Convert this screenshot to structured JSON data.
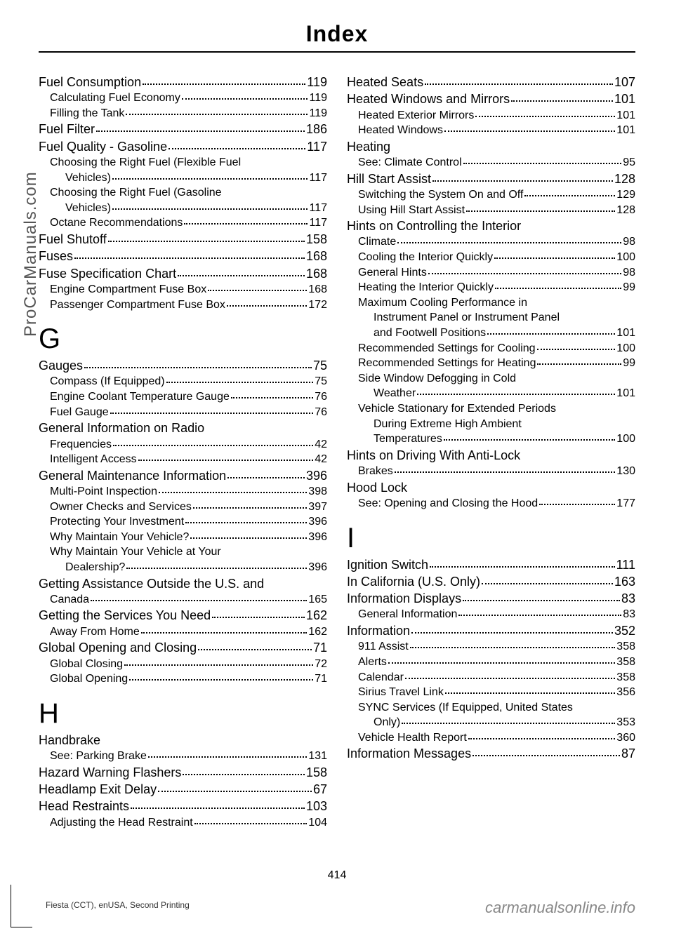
{
  "title": "Index",
  "page_number": "414",
  "footer_left": "Fiesta (CCT), enUSA, Second Printing",
  "footer_right": "carmanualsonline.info",
  "watermark": "ProCarManuals.com",
  "left_column": [
    {
      "label": "Fuel Consumption",
      "page": "119",
      "level": 0
    },
    {
      "label": "Calculating Fuel Economy",
      "page": "119",
      "level": 1
    },
    {
      "label": "Filling the Tank",
      "page": "119",
      "level": 1
    },
    {
      "label": "Fuel Filter",
      "page": "186",
      "level": 0
    },
    {
      "label": "Fuel Quality - Gasoline",
      "page": "117",
      "level": 0
    },
    {
      "label": "Choosing the Right Fuel (Flexible Fuel",
      "level": 1
    },
    {
      "label": "Vehicles)",
      "page": "117",
      "level": 2
    },
    {
      "label": "Choosing the Right Fuel (Gasoline",
      "level": 1
    },
    {
      "label": "Vehicles)",
      "page": "117",
      "level": 2
    },
    {
      "label": "Octane Recommendations",
      "page": "117",
      "level": 1
    },
    {
      "label": "Fuel Shutoff",
      "page": "158",
      "level": 0
    },
    {
      "label": "Fuses",
      "page": "168",
      "level": 0
    },
    {
      "label": "Fuse Specification Chart",
      "page": "168",
      "level": 0
    },
    {
      "label": "Engine Compartment Fuse Box",
      "page": "168",
      "level": 1
    },
    {
      "label": "Passenger Compartment Fuse Box",
      "page": "172",
      "level": 1
    },
    {
      "letter": "G"
    },
    {
      "label": "Gauges",
      "page": "75",
      "level": 0
    },
    {
      "label": "Compass (If Equipped)",
      "page": "75",
      "level": 1
    },
    {
      "label": "Engine Coolant Temperature Gauge",
      "page": "76",
      "level": 1
    },
    {
      "label": "Fuel Gauge",
      "page": "76",
      "level": 1
    },
    {
      "label": "General Information on Radio",
      "level": 0
    },
    {
      "label": "Frequencies",
      "page": "42",
      "level": 1
    },
    {
      "label": "Intelligent Access",
      "page": "42",
      "level": 1
    },
    {
      "label": "General Maintenance Information",
      "page": "396",
      "level": 0
    },
    {
      "label": "Multi-Point Inspection",
      "page": "398",
      "level": 1
    },
    {
      "label": "Owner Checks and Services",
      "page": "397",
      "level": 1
    },
    {
      "label": "Protecting Your Investment",
      "page": "396",
      "level": 1
    },
    {
      "label": "Why Maintain Your Vehicle?",
      "page": "396",
      "level": 1
    },
    {
      "label": "Why Maintain Your Vehicle at Your",
      "level": 1
    },
    {
      "label": "Dealership?",
      "page": "396",
      "level": 2
    },
    {
      "label": "Getting Assistance Outside the U.S. and",
      "level": 0
    },
    {
      "label": "Canada",
      "page": "165",
      "level": 1
    },
    {
      "label": "Getting the Services You Need",
      "page": "162",
      "level": 0
    },
    {
      "label": "Away From Home",
      "page": "162",
      "level": 1
    },
    {
      "label": "Global Opening and Closing",
      "page": "71",
      "level": 0
    },
    {
      "label": "Global Closing",
      "page": "72",
      "level": 1
    },
    {
      "label": "Global Opening",
      "page": "71",
      "level": 1
    },
    {
      "letter": "H"
    },
    {
      "label": "Handbrake",
      "level": 0
    },
    {
      "label": "See: Parking Brake",
      "page": "131",
      "level": 1
    },
    {
      "label": "Hazard Warning Flashers",
      "page": "158",
      "level": 0
    },
    {
      "label": "Headlamp Exit Delay",
      "page": "67",
      "level": 0
    },
    {
      "label": "Head Restraints",
      "page": "103",
      "level": 0
    },
    {
      "label": "Adjusting the Head Restraint",
      "page": "104",
      "level": 1
    }
  ],
  "right_column": [
    {
      "label": "Heated Seats",
      "page": "107",
      "level": 0
    },
    {
      "label": "Heated Windows and Mirrors",
      "page": "101",
      "level": 0
    },
    {
      "label": "Heated Exterior Mirrors",
      "page": "101",
      "level": 1
    },
    {
      "label": "Heated Windows",
      "page": "101",
      "level": 1
    },
    {
      "label": "Heating",
      "level": 0
    },
    {
      "label": "See: Climate Control",
      "page": "95",
      "level": 1
    },
    {
      "label": "Hill Start Assist",
      "page": "128",
      "level": 0
    },
    {
      "label": "Switching the System On and Off",
      "page": "129",
      "level": 1
    },
    {
      "label": "Using Hill Start Assist",
      "page": "128",
      "level": 1
    },
    {
      "label": "Hints on Controlling the Interior",
      "level": 0
    },
    {
      "label": "Climate",
      "page": "98",
      "level": 1
    },
    {
      "label": "Cooling the Interior Quickly",
      "page": "100",
      "level": 1
    },
    {
      "label": "General Hints",
      "page": "98",
      "level": 1
    },
    {
      "label": "Heating the Interior Quickly",
      "page": "99",
      "level": 1
    },
    {
      "label": "Maximum Cooling Performance in",
      "level": 1
    },
    {
      "label": "Instrument Panel or Instrument Panel",
      "level": 2
    },
    {
      "label": "and Footwell Positions",
      "page": "101",
      "level": 2
    },
    {
      "label": "Recommended Settings for Cooling ",
      "page": "100",
      "level": 1
    },
    {
      "label": "Recommended Settings for Heating",
      "page": "99",
      "level": 1
    },
    {
      "label": "Side Window Defogging in Cold",
      "level": 1
    },
    {
      "label": "Weather",
      "page": "101",
      "level": 2
    },
    {
      "label": "Vehicle Stationary for Extended Periods",
      "level": 1
    },
    {
      "label": "During Extreme High Ambient",
      "level": 2
    },
    {
      "label": "Temperatures",
      "page": "100",
      "level": 2
    },
    {
      "label": "Hints on Driving With Anti-Lock",
      "level": 0
    },
    {
      "label": "Brakes",
      "page": "130",
      "level": 1
    },
    {
      "label": "Hood Lock",
      "level": 0
    },
    {
      "label": "See: Opening and Closing the Hood",
      "page": "177",
      "level": 1
    },
    {
      "letter": "I"
    },
    {
      "label": "Ignition Switch",
      "page": "111",
      "level": 0
    },
    {
      "label": "In California (U.S. Only)",
      "page": "163",
      "level": 0
    },
    {
      "label": "Information Displays",
      "page": "83",
      "level": 0
    },
    {
      "label": "General Information",
      "page": "83",
      "level": 1
    },
    {
      "label": "Information",
      "page": "352",
      "level": 0
    },
    {
      "label": "911 Assist",
      "page": "358",
      "level": 1
    },
    {
      "label": "Alerts",
      "page": "358",
      "level": 1
    },
    {
      "label": "Calendar",
      "page": "358",
      "level": 1
    },
    {
      "label": "Sirius Travel Link",
      "page": "356",
      "level": 1
    },
    {
      "label": "SYNC Services (If Equipped, United States",
      "level": 1
    },
    {
      "label": "Only)",
      "page": "353",
      "level": 2
    },
    {
      "label": "Vehicle Health Report",
      "page": "360",
      "level": 1
    },
    {
      "label": "Information Messages",
      "page": "87",
      "level": 0
    }
  ]
}
